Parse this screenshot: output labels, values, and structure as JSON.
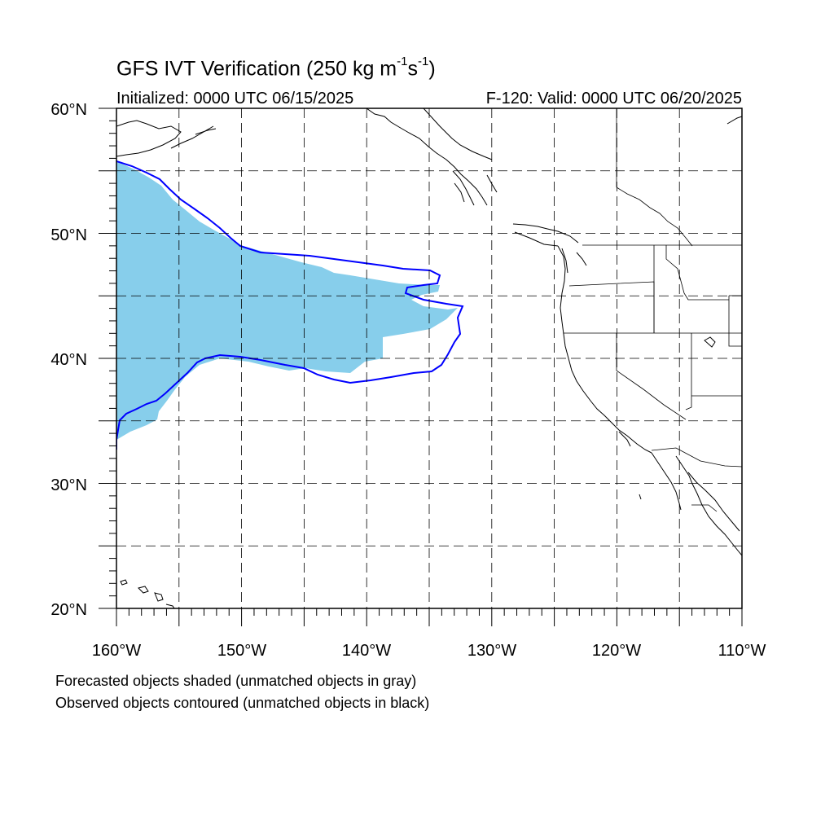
{
  "title": {
    "main_prefix": "GFS IVT Verification (250 kg m",
    "sup1": "-1",
    "mid": "s",
    "sup2": "-1",
    "suffix": ")"
  },
  "subtitle": {
    "initialized": "Initialized: 0000 UTC 06/15/2025",
    "valid": "F-120: Valid: 0000 UTC 06/20/2025"
  },
  "notes": {
    "forecast": "Forecasted objects shaded (unmatched objects in gray)",
    "observed": "Observed objects contoured (unmatched objects in black)"
  },
  "axes": {
    "lat_labels": [
      "60°N",
      "50°N",
      "40°N",
      "30°N",
      "20°N"
    ],
    "lon_labels": [
      "160°W",
      "150°W",
      "140°W",
      "130°W",
      "120°W",
      "110°W"
    ]
  },
  "map": {
    "lon_range": [
      -160,
      -110
    ],
    "lat_range": [
      20,
      60
    ],
    "grid_step": 5,
    "grid_style": "dashed",
    "forecast_object_color": "#87ceeb",
    "observed_contour_color": "#0000ff",
    "coastline_color": "#000000"
  }
}
